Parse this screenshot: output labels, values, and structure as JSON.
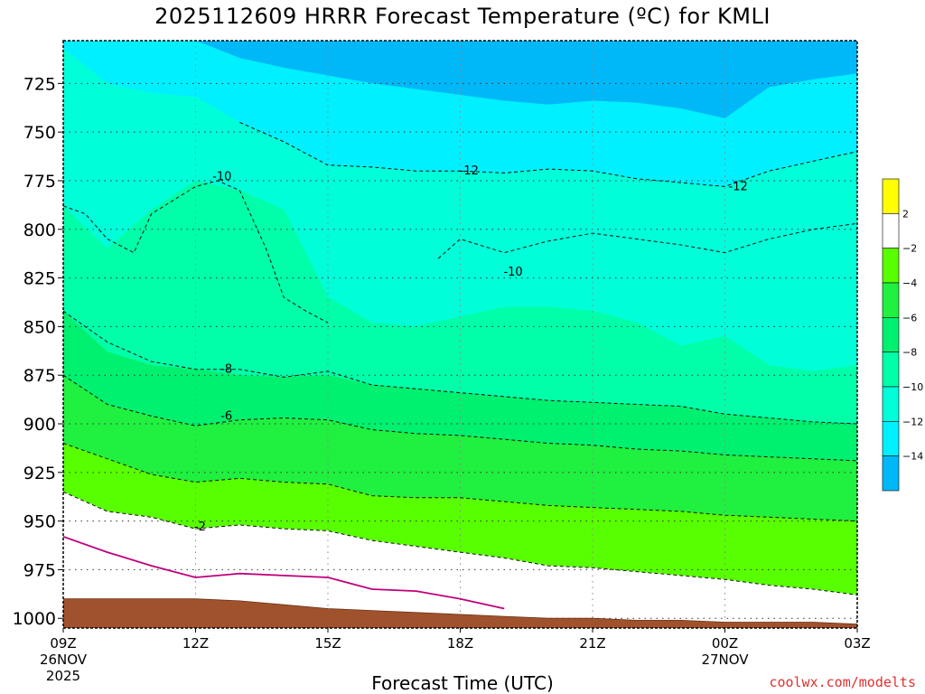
{
  "title": "2025112609 HRRR Forecast Temperature (ºC) for KMLI",
  "credit": "coolwx.com/modelts",
  "chart_data": {
    "type": "heatmap",
    "title": "2025112609 HRRR Forecast Temperature (ºC) for KMLI",
    "xlabel": "Forecast Time (UTC)",
    "ylabel": "",
    "x_ticks": [
      {
        "label": "09Z",
        "sub": [
          "26NOV",
          "2025"
        ],
        "hour": 0
      },
      {
        "label": "12Z",
        "sub": [],
        "hour": 3
      },
      {
        "label": "15Z",
        "sub": [],
        "hour": 6
      },
      {
        "label": "18Z",
        "sub": [],
        "hour": 9
      },
      {
        "label": "21Z",
        "sub": [],
        "hour": 12
      },
      {
        "label": "00Z",
        "sub": [
          "27NOV"
        ],
        "hour": 15
      },
      {
        "label": "03Z",
        "sub": [],
        "hour": 18
      }
    ],
    "y_ticks": [
      725,
      750,
      775,
      800,
      825,
      850,
      875,
      900,
      925,
      950,
      975,
      1000
    ],
    "ylim": [
      1005,
      703
    ],
    "xlim": [
      0,
      18
    ],
    "grid": true,
    "colorbar": {
      "levels": [
        2,
        -2,
        -4,
        -6,
        -8,
        -10,
        -12,
        -14
      ],
      "colors": [
        "#ffff00",
        "#ffffff",
        "#58ff00",
        "#20f040",
        "#00f070",
        "#00ffa8",
        "#00ffd8",
        "#00f0ff",
        "#00b8f8"
      ]
    },
    "hours": [
      0,
      1,
      2,
      3,
      4,
      5,
      6,
      7,
      8,
      9,
      10,
      11,
      12,
      13,
      14,
      15,
      16,
      17,
      18
    ],
    "bands": [
      {
        "name": "lt-14",
        "color": "#00b8f8",
        "top": [
          703,
          703,
          703,
          703,
          703,
          703,
          703,
          703,
          703,
          703,
          703,
          703,
          703,
          703,
          703,
          703,
          703,
          703,
          703
        ],
        "bottom": [
          703,
          703,
          703,
          703,
          712,
          717,
          721,
          725,
          728,
          731,
          734,
          736,
          734,
          735,
          738,
          743,
          727,
          723,
          720
        ]
      },
      {
        "name": "-14--12",
        "color": "#00f0ff",
        "top": "prev",
        "bottom": [
          707,
          725,
          730,
          732,
          745,
          755,
          767,
          768,
          770,
          770,
          771,
          769,
          770,
          774,
          776,
          778,
          770,
          765,
          760
        ]
      },
      {
        "name": "-12--10",
        "color": "#00ffd8",
        "top": "prev",
        "bottom": [
          788,
          810,
          790,
          775,
          780,
          790,
          835,
          848,
          850,
          845,
          840,
          840,
          842,
          848,
          860,
          855,
          870,
          873,
          870
        ]
      },
      {
        "name": "-10--8",
        "color": "#00ffa8",
        "top": "prev",
        "bottom": [
          842,
          863,
          870,
          872,
          875,
          876,
          875,
          880,
          882,
          884,
          886,
          888,
          889,
          890,
          891,
          895,
          897,
          899,
          900
        ]
      },
      {
        "name": "-8--6",
        "color": "#00f070",
        "top": "prev",
        "bottom": [
          875,
          890,
          896,
          901,
          898,
          897,
          898,
          903,
          905,
          906,
          908,
          910,
          911,
          913,
          914,
          916,
          917,
          918,
          919
        ]
      },
      {
        "name": "-6--4",
        "color": "#20f040",
        "top": "prev",
        "bottom": [
          910,
          918,
          926,
          930,
          928,
          930,
          931,
          937,
          938,
          938,
          940,
          942,
          943,
          944,
          945,
          947,
          948,
          949,
          950
        ]
      },
      {
        "name": "-4--2",
        "color": "#58ff00",
        "top": "prev",
        "bottom": [
          935,
          945,
          948,
          954,
          952,
          954,
          955,
          960,
          963,
          966,
          969,
          973,
          974,
          976,
          978,
          980,
          983,
          985,
          988
        ]
      },
      {
        "name": "-2-2",
        "color": "#ffffff",
        "top": "prev",
        "bottom": [
          1005,
          1005,
          1005,
          1005,
          1005,
          1005,
          1005,
          1005,
          1005,
          1005,
          1005,
          1005,
          1005,
          1005,
          1005,
          1005,
          1005,
          1005,
          1005
        ]
      }
    ],
    "contours": [
      {
        "label": "-12",
        "hours": [
          4,
          5,
          6,
          7,
          8,
          9,
          10,
          11,
          12,
          13,
          14,
          15,
          16,
          17,
          18
        ],
        "pressure": [
          745,
          755,
          767,
          768,
          770,
          770,
          771,
          769,
          770,
          774,
          776,
          778,
          770,
          765,
          760
        ],
        "label_at": [
          9.2,
          770
        ],
        "label2_at": [
          15.3,
          778
        ]
      },
      {
        "label": "-10",
        "hours": [
          0,
          0.5,
          1,
          1.6,
          2,
          2.5,
          3,
          3.5,
          4,
          4.6,
          5,
          5.5,
          6
        ],
        "pressure": [
          788,
          792,
          805,
          812,
          792,
          785,
          778,
          775,
          780,
          810,
          835,
          842,
          848
        ],
        "label_at": [
          3.6,
          773
        ]
      },
      {
        "label": "-10",
        "hours": [
          8.5,
          9,
          10,
          11,
          12,
          13,
          14,
          15,
          16,
          17,
          18
        ],
        "pressure": [
          815,
          805,
          812,
          806,
          802,
          805,
          808,
          812,
          805,
          800,
          797
        ],
        "label_at": [
          10.2,
          822
        ]
      },
      {
        "label": "-8",
        "hours": [
          0,
          1,
          2,
          3,
          4,
          5,
          6,
          7,
          8,
          9,
          10,
          11,
          12,
          13,
          14,
          15,
          16,
          17,
          18
        ],
        "pressure": [
          842,
          858,
          868,
          872,
          872,
          876,
          873,
          880,
          882,
          884,
          886,
          888,
          889,
          890,
          891,
          895,
          897,
          899,
          900
        ],
        "label_at": [
          3.7,
          872
        ]
      },
      {
        "label": "-6",
        "hours": [
          0,
          1,
          2,
          3,
          4,
          5,
          6,
          7,
          8,
          9,
          10,
          11,
          12,
          13,
          14,
          15,
          16,
          17,
          18
        ],
        "pressure": [
          875,
          890,
          896,
          901,
          898,
          897,
          898,
          903,
          905,
          906,
          908,
          910,
          911,
          913,
          914,
          916,
          917,
          918,
          919
        ],
        "label_at": [
          3.7,
          896
        ]
      },
      {
        "label": "-4",
        "hours": [
          0,
          1,
          2,
          3,
          4,
          5,
          6,
          7,
          8,
          9,
          10,
          11,
          12,
          13,
          14,
          15,
          16,
          17,
          18
        ],
        "pressure": [
          910,
          918,
          926,
          930,
          928,
          930,
          931,
          937,
          938,
          938,
          940,
          942,
          943,
          944,
          945,
          947,
          948,
          949,
          950
        ],
        "label_at": null
      },
      {
        "label": "-2",
        "hours": [
          0,
          1,
          2,
          3,
          4,
          5,
          6,
          7,
          8,
          9,
          10,
          11,
          12,
          13,
          14,
          15,
          16,
          17,
          18
        ],
        "pressure": [
          935,
          945,
          948,
          954,
          952,
          954,
          955,
          960,
          963,
          966,
          969,
          973,
          974,
          976,
          978,
          980,
          983,
          985,
          988
        ],
        "label_at": [
          3.1,
          953
        ]
      }
    ],
    "surface": {
      "color": "#a0522d",
      "hours": [
        0,
        1,
        2,
        3,
        4,
        5,
        6,
        7,
        8,
        9,
        10,
        11,
        12,
        13,
        14,
        15,
        16,
        17,
        18
      ],
      "pressure": [
        990,
        990,
        990,
        990,
        991,
        993,
        995,
        996,
        997,
        998,
        999,
        1000,
        1000,
        1001,
        1001,
        1002,
        1002,
        1002,
        1003
      ]
    },
    "freezing_line": {
      "color": "#c0007a",
      "hours": [
        0,
        1,
        2,
        3,
        3.5,
        4,
        5,
        6,
        7,
        8,
        9,
        10
      ],
      "pressure": [
        958,
        966,
        973,
        979,
        978,
        977,
        978,
        979,
        985,
        986,
        990,
        995
      ]
    }
  }
}
